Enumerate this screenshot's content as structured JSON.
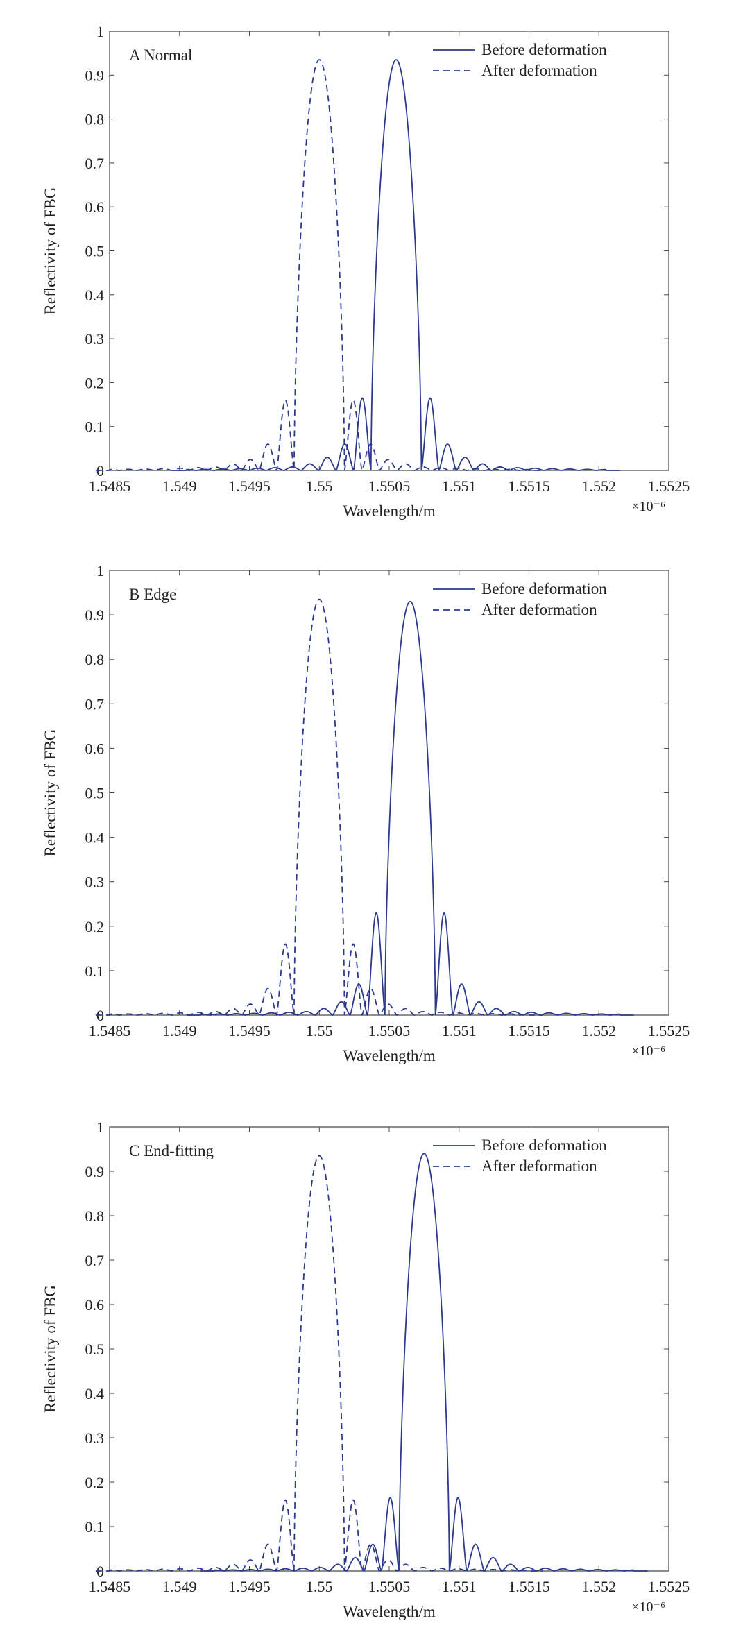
{
  "chart_data": [
    {
      "type": "line",
      "panel_label": "A Normal",
      "xlabel": "Wavelength/m",
      "ylabel": "Reflectivity of FBG",
      "x_exponent_label": "×10⁻⁶",
      "xlim": [
        1.5485,
        1.5525
      ],
      "ylim": [
        0,
        1
      ],
      "x_ticks": [
        "1.5485",
        "1.549",
        "1.5495",
        "1.55",
        "1.5505",
        "1.551",
        "1.5515",
        "1.552",
        "1.5525"
      ],
      "y_ticks": [
        "0",
        "0.1",
        "0.2",
        "0.3",
        "0.4",
        "0.5",
        "0.6",
        "0.7",
        "0.8",
        "0.9",
        "1"
      ],
      "legend_position": "top-right",
      "series": [
        {
          "name": "Before deformation",
          "style": "solid",
          "color": "#2b3a8c",
          "center": 1.55055,
          "peak": 0.935,
          "lobes": [
            0.165,
            0.06,
            0.03,
            0.015,
            0.008
          ]
        },
        {
          "name": "After deformation",
          "style": "dashed",
          "color": "#2b3a8c",
          "center": 1.55,
          "peak": 0.935,
          "lobes": [
            0.16,
            0.06,
            0.025,
            0.015,
            0.008
          ]
        }
      ]
    },
    {
      "type": "line",
      "panel_label": "B Edge",
      "xlabel": "Wavelength/m",
      "ylabel": "Reflectivity of FBG",
      "x_exponent_label": "×10⁻⁶",
      "xlim": [
        1.5485,
        1.5525
      ],
      "ylim": [
        0,
        1
      ],
      "x_ticks": [
        "1.5485",
        "1.549",
        "1.5495",
        "1.55",
        "1.5505",
        "1.551",
        "1.5515",
        "1.552",
        "1.5525"
      ],
      "y_ticks": [
        "0",
        "0.1",
        "0.2",
        "0.3",
        "0.4",
        "0.5",
        "0.6",
        "0.7",
        "0.8",
        "0.9",
        "1"
      ],
      "legend_position": "top-right",
      "series": [
        {
          "name": "Before deformation",
          "style": "solid",
          "color": "#2b3a8c",
          "center": 1.55065,
          "peak": 0.93,
          "lobes": [
            0.23,
            0.07,
            0.03,
            0.015,
            0.008
          ]
        },
        {
          "name": "After deformation",
          "style": "dashed",
          "color": "#2b3a8c",
          "center": 1.55,
          "peak": 0.935,
          "lobes": [
            0.16,
            0.06,
            0.025,
            0.015,
            0.008
          ]
        }
      ]
    },
    {
      "type": "line",
      "panel_label": "C End-fitting",
      "xlabel": "Wavelength/m",
      "ylabel": "Reflectivity of FBG",
      "x_exponent_label": "×10⁻⁶",
      "xlim": [
        1.5485,
        1.5525
      ],
      "ylim": [
        0,
        1
      ],
      "x_ticks": [
        "1.5485",
        "1.549",
        "1.5495",
        "1.55",
        "1.5505",
        "1.551",
        "1.5515",
        "1.552",
        "1.5525"
      ],
      "y_ticks": [
        "0",
        "0.1",
        "0.2",
        "0.3",
        "0.4",
        "0.5",
        "0.6",
        "0.7",
        "0.8",
        "0.9",
        "1"
      ],
      "legend_position": "top-right",
      "series": [
        {
          "name": "Before deformation",
          "style": "solid",
          "color": "#2b3a8c",
          "center": 1.55075,
          "peak": 0.94,
          "lobes": [
            0.165,
            0.06,
            0.03,
            0.015,
            0.008
          ]
        },
        {
          "name": "After deformation",
          "style": "dashed",
          "color": "#2b3a8c",
          "center": 1.55,
          "peak": 0.935,
          "lobes": [
            0.16,
            0.06,
            0.025,
            0.015,
            0.008
          ]
        }
      ]
    }
  ]
}
